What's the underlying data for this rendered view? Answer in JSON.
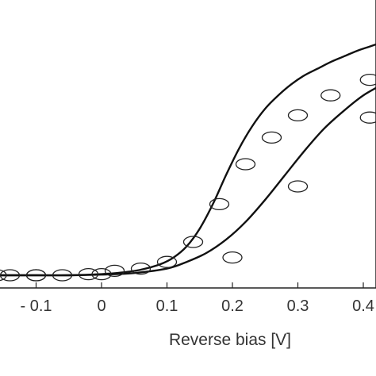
{
  "chart_data": {
    "type": "scatter",
    "xlabel": "Reverse bias [V]",
    "ylabel": "",
    "xlim": [
      -0.16,
      0.43
    ],
    "ylim": [
      0,
      1.13
    ],
    "x_ticks": [
      -0.1,
      0,
      0.1,
      0.2,
      0.3,
      0.4
    ],
    "x_tick_labels": [
      "- 0.1",
      "0",
      "0.1",
      "0.2",
      "0.3",
      "0.4"
    ],
    "grid": false,
    "series": [
      {
        "kind": "fit-curve",
        "x": [
          -0.16,
          -0.1,
          -0.05,
          0,
          0.03,
          0.06,
          0.09,
          0.11,
          0.13,
          0.15,
          0.17,
          0.19,
          0.21,
          0.23,
          0.25,
          0.27,
          0.29,
          0.31,
          0.33,
          0.35,
          0.37,
          0.39,
          0.41,
          0.43
        ],
        "y": [
          0,
          0,
          0,
          0.005,
          0.012,
          0.025,
          0.05,
          0.08,
          0.13,
          0.21,
          0.32,
          0.45,
          0.57,
          0.67,
          0.75,
          0.81,
          0.86,
          0.9,
          0.93,
          0.96,
          0.985,
          1.01,
          1.03,
          1.05
        ]
      },
      {
        "kind": "fit-curve",
        "x": [
          -0.16,
          -0.1,
          -0.05,
          0,
          0.05,
          0.1,
          0.13,
          0.16,
          0.19,
          0.22,
          0.25,
          0.28,
          0.31,
          0.34,
          0.37,
          0.4,
          0.43
        ],
        "y": [
          0,
          0,
          0,
          0.003,
          0.01,
          0.03,
          0.06,
          0.1,
          0.16,
          0.24,
          0.34,
          0.45,
          0.56,
          0.66,
          0.74,
          0.81,
          0.86
        ]
      },
      {
        "kind": "measured",
        "x": [
          -0.16,
          -0.14,
          -0.1,
          -0.1,
          -0.06,
          -0.02,
          0,
          0.02,
          0.06,
          0.1,
          0.14,
          0.18,
          0.22,
          0.26,
          0.3,
          0.35,
          0.41
        ],
        "y": [
          0,
          0,
          0,
          0,
          0,
          0.005,
          0.005,
          0.02,
          0.03,
          0.06,
          0.15,
          0.32,
          0.5,
          0.62,
          0.72,
          0.81,
          0.88
        ]
      },
      {
        "kind": "measured",
        "x": [
          0.2,
          0.3,
          0.41
        ],
        "y": [
          0.08,
          0.4,
          0.71
        ]
      }
    ]
  }
}
